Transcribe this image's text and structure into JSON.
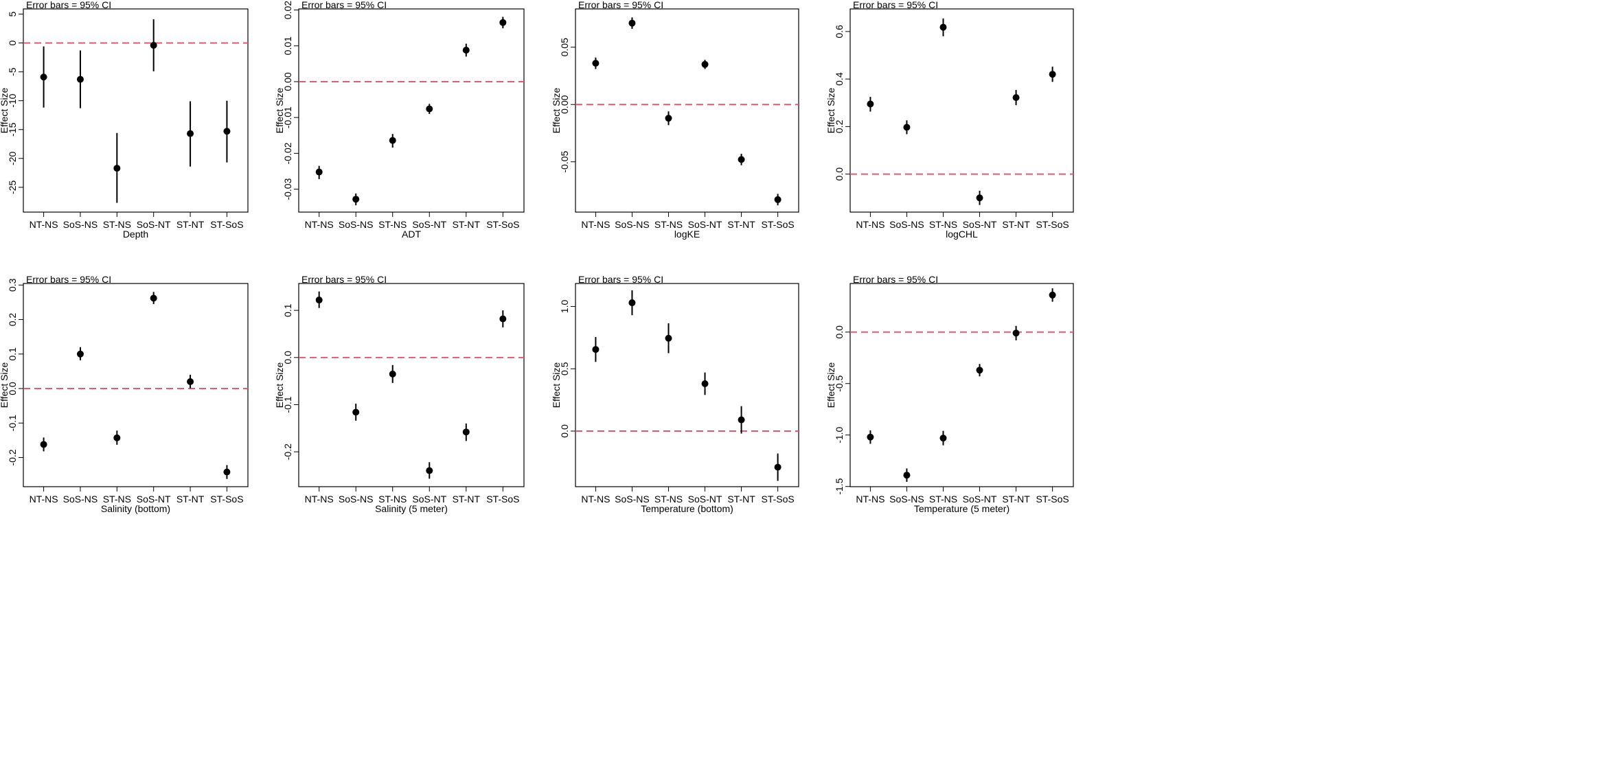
{
  "chart_data": [
    {
      "type": "scatter",
      "note": "Error bars = 95% CI",
      "xlabel": "Depth",
      "ylabel": "Effect Size",
      "categories": [
        "NT-NS",
        "SoS-NS",
        "ST-NS",
        "SoS-NT",
        "ST-NT",
        "ST-SoS"
      ],
      "values": [
        -5.9,
        -6.3,
        -21.7,
        -0.4,
        -15.7,
        -15.3
      ],
      "ci_low": [
        -11.2,
        -11.3,
        -27.7,
        -4.9,
        -21.4,
        -20.7
      ],
      "ci_high": [
        -0.6,
        -1.3,
        -15.6,
        4.1,
        -10.1,
        -10.0
      ],
      "reference_line": 0,
      "yticks": [
        5,
        0,
        -5,
        -10,
        -15,
        -20,
        -25
      ],
      "ytick_labels": [
        "5",
        "0",
        "-5",
        "-10",
        "-15",
        "-20",
        "-25"
      ],
      "ylim": [
        -29.3,
        5.9
      ]
    },
    {
      "type": "scatter",
      "note": "Error bars = 95% CI",
      "xlabel": "ADT",
      "ylabel": "Effect Size",
      "categories": [
        "NT-NS",
        "SoS-NS",
        "ST-NS",
        "SoS-NT",
        "ST-NT",
        "ST-SoS"
      ],
      "values": [
        -0.0252,
        -0.0328,
        -0.0164,
        -0.0076,
        0.0088,
        0.0165
      ],
      "ci_low": [
        -0.0272,
        -0.0345,
        -0.0184,
        -0.009,
        0.007,
        0.0149
      ],
      "ci_high": [
        -0.0235,
        -0.0312,
        -0.0146,
        -0.0062,
        0.0106,
        0.0181
      ],
      "reference_line": 0,
      "yticks": [
        0.02,
        0.01,
        0.0,
        -0.01,
        -0.02,
        -0.03
      ],
      "ytick_labels": [
        "0.02",
        "0.01",
        "0.00",
        "-0.01",
        "-0.02",
        "-0.03"
      ],
      "ylim": [
        -0.0364,
        0.0203
      ]
    },
    {
      "type": "scatter",
      "note": "Error bars = 95% CI",
      "xlabel": "logKE",
      "ylabel": "Effect Size",
      "categories": [
        "NT-NS",
        "SoS-NS",
        "ST-NS",
        "SoS-NT",
        "ST-NT",
        "ST-SoS"
      ],
      "values": [
        0.036,
        0.071,
        -0.012,
        0.035,
        -0.048,
        -0.083
      ],
      "ci_low": [
        0.031,
        0.066,
        -0.018,
        0.031,
        -0.053,
        -0.088
      ],
      "ci_high": [
        0.041,
        0.076,
        -0.006,
        0.039,
        -0.043,
        -0.078
      ],
      "reference_line": 0,
      "yticks": [
        0.05,
        0.0,
        -0.05
      ],
      "ytick_labels": [
        "0.05",
        "0.00",
        "-0.05"
      ],
      "ylim": [
        -0.0939,
        0.0834
      ]
    },
    {
      "type": "scatter",
      "note": "Error bars = 95% CI",
      "xlabel": "logCHL",
      "ylabel": "Effect Size",
      "categories": [
        "NT-NS",
        "SoS-NS",
        "ST-NS",
        "SoS-NT",
        "ST-NT",
        "ST-SoS"
      ],
      "values": [
        0.295,
        0.197,
        0.618,
        -0.1,
        0.322,
        0.42
      ],
      "ci_low": [
        0.263,
        0.168,
        0.58,
        -0.13,
        0.29,
        0.388
      ],
      "ci_high": [
        0.325,
        0.226,
        0.655,
        -0.07,
        0.354,
        0.452
      ],
      "reference_line": 0,
      "yticks": [
        0.6,
        0.4,
        0.2,
        0.0
      ],
      "ytick_labels": [
        "0.6",
        "0.4",
        "0.2",
        "0.0"
      ],
      "ylim": [
        -0.16,
        0.695
      ]
    },
    {
      "type": "scatter",
      "note": "Error bars = 95% CI",
      "xlabel": "Salinity (bottom)",
      "ylabel": "Effect Size",
      "categories": [
        "NT-NS",
        "SoS-NS",
        "ST-NS",
        "SoS-NT",
        "ST-NT",
        "ST-SoS"
      ],
      "values": [
        -0.162,
        0.1,
        -0.143,
        0.262,
        0.02,
        -0.242
      ],
      "ci_low": [
        -0.182,
        0.082,
        -0.163,
        0.245,
        0.001,
        -0.262
      ],
      "ci_high": [
        -0.142,
        0.12,
        -0.122,
        0.28,
        0.04,
        -0.222
      ],
      "reference_line": 0,
      "yticks": [
        0.3,
        0.2,
        0.1,
        0.0,
        -0.1,
        -0.2
      ],
      "ytick_labels": [
        "0.3",
        "0.2",
        "0.1",
        "0.0",
        "-0.1",
        "-0.2"
      ],
      "ylim": [
        -0.2845,
        0.3045
      ]
    },
    {
      "type": "scatter",
      "note": "Error bars = 95% CI",
      "xlabel": "Salinity (5 meter)",
      "ylabel": "Effect Size",
      "categories": [
        "NT-NS",
        "SoS-NS",
        "ST-NS",
        "SoS-NT",
        "ST-NT",
        "ST-SoS"
      ],
      "values": [
        0.122,
        -0.116,
        -0.035,
        -0.24,
        -0.158,
        0.082
      ],
      "ci_low": [
        0.105,
        -0.134,
        -0.054,
        -0.257,
        -0.177,
        0.064
      ],
      "ci_high": [
        0.14,
        -0.098,
        -0.016,
        -0.222,
        -0.14,
        0.1
      ],
      "reference_line": 0,
      "yticks": [
        0.1,
        0.0,
        -0.1,
        -0.2
      ],
      "ytick_labels": [
        "0.1",
        "0.0",
        "-0.1",
        "-0.2"
      ],
      "ylim": [
        -0.274,
        0.157
      ]
    },
    {
      "type": "scatter",
      "note": "Error bars = 95% CI",
      "xlabel": "Temperature (bottom)",
      "ylabel": "Effect Size",
      "categories": [
        "NT-NS",
        "SoS-NS",
        "ST-NS",
        "SoS-NT",
        "ST-NT",
        "ST-SoS"
      ],
      "values": [
        0.655,
        1.03,
        0.745,
        0.38,
        0.09,
        -0.29
      ],
      "ci_low": [
        0.555,
        0.93,
        0.625,
        0.29,
        -0.02,
        -0.4
      ],
      "ci_high": [
        0.755,
        1.13,
        0.865,
        0.47,
        0.2,
        -0.18
      ],
      "reference_line": 0,
      "yticks": [
        1.0,
        0.5,
        0.0
      ],
      "ytick_labels": [
        "1.0",
        "0.5",
        "0.0"
      ],
      "ylim": [
        -0.4465,
        1.1845
      ]
    },
    {
      "type": "scatter",
      "note": "Error bars = 95% CI",
      "xlabel": "Temperature (5 meter)",
      "ylabel": "Effect Size",
      "categories": [
        "NT-NS",
        "SoS-NS",
        "ST-NS",
        "SoS-NT",
        "ST-NT",
        "ST-SoS"
      ],
      "values": [
        -1.02,
        -1.39,
        -1.03,
        -0.37,
        -0.01,
        0.36
      ],
      "ci_low": [
        -1.085,
        -1.455,
        -1.1,
        -0.43,
        -0.08,
        0.295
      ],
      "ci_high": [
        -0.955,
        -1.325,
        -0.96,
        -0.31,
        0.06,
        0.425
      ],
      "reference_line": 0,
      "yticks": [
        0.0,
        -0.5,
        -1.0,
        -1.5
      ],
      "ytick_labels": [
        "0.0",
        "-0.5",
        "-1.0",
        "-1.5"
      ],
      "ylim": [
        -1.502,
        0.472
      ]
    }
  ]
}
